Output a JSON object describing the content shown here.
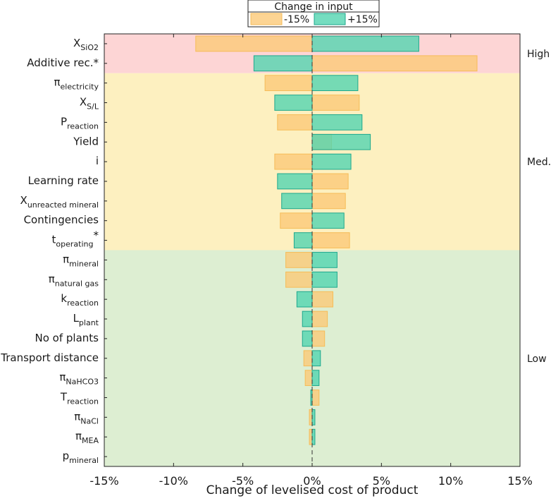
{
  "chart_data": {
    "type": "bar",
    "orientation": "horizontal",
    "title": "",
    "xlabel": "Change of levelised cost of product",
    "xlim": [
      -15,
      15
    ],
    "xticks": [
      "-15%",
      "-10%",
      "-5%",
      "0%",
      "5%",
      "10%",
      "15%"
    ],
    "xtick_values": [
      -15,
      -10,
      -5,
      0,
      5,
      10,
      15
    ],
    "legend": {
      "title": "Change in input",
      "entries": [
        "-15%",
        "+15%"
      ]
    },
    "categories": [
      {
        "main": "X",
        "sub": "SiO2",
        "sup": ""
      },
      {
        "main": "Additive rec.*",
        "sub": "",
        "sup": ""
      },
      {
        "main": "π",
        "sub": "electricity",
        "sup": ""
      },
      {
        "main": "X",
        "sub": "S/L",
        "sup": ""
      },
      {
        "main": "P",
        "sub": "reaction",
        "sup": ""
      },
      {
        "main": "Yield",
        "sub": "",
        "sup": ""
      },
      {
        "main": "i",
        "sub": "",
        "sup": ""
      },
      {
        "main": "Learning rate",
        "sub": "",
        "sup": ""
      },
      {
        "main": "X",
        "sub": "unreacted mineral",
        "sup": ""
      },
      {
        "main": "Contingencies",
        "sub": "",
        "sup": ""
      },
      {
        "main": "t",
        "sub": "operating",
        "sup": "*"
      },
      {
        "main": "π",
        "sub": "mineral",
        "sup": ""
      },
      {
        "main": "π",
        "sub": "natural gas",
        "sup": ""
      },
      {
        "main": "k",
        "sub": "reaction",
        "sup": ""
      },
      {
        "main": "L",
        "sub": "plant",
        "sup": ""
      },
      {
        "main": "No of plants",
        "sub": "",
        "sup": ""
      },
      {
        "main": "Transport distance",
        "sub": "",
        "sup": ""
      },
      {
        "main": "π",
        "sub": "NaHCO3",
        "sup": ""
      },
      {
        "main": "T",
        "sub": "reaction",
        "sup": ""
      },
      {
        "main": "π",
        "sub": "NaCl",
        "sup": ""
      },
      {
        "main": "π",
        "sub": "MEA",
        "sup": ""
      },
      {
        "main": "p",
        "sub": "mineral",
        "sup": ""
      }
    ],
    "series": [
      {
        "name": "-15%",
        "values": [
          -8.4,
          11.9,
          -3.4,
          3.4,
          -2.5,
          1.4,
          -2.7,
          2.6,
          2.4,
          -2.3,
          2.7,
          -1.9,
          -1.9,
          1.5,
          1.1,
          0.9,
          -0.6,
          -0.5,
          0.5,
          -0.2,
          -0.2,
          0.0
        ]
      },
      {
        "name": "+15%",
        "values": [
          7.7,
          -4.2,
          3.3,
          -2.7,
          3.6,
          4.2,
          2.8,
          -2.5,
          -2.2,
          2.3,
          -1.3,
          1.8,
          1.8,
          -1.1,
          -0.7,
          -0.7,
          0.6,
          0.5,
          -0.1,
          0.2,
          0.2,
          0.0
        ]
      }
    ],
    "bands": [
      {
        "label": "High",
        "from_index": 0,
        "to_index": 1,
        "fill": "#fdd5d5",
        "text_color": "#e3211d"
      },
      {
        "label": "Med.",
        "from_index": 2,
        "to_index": 10,
        "fill": "#fdf0c0",
        "text_color": "#f0c020"
      },
      {
        "label": "Low",
        "from_index": 11,
        "to_index": 21,
        "fill": "#ddeed2",
        "text_color": "#5cb82e"
      }
    ],
    "colors": {
      "neg_fill": "#fbc978",
      "neg_stroke": "#f6bc58",
      "pos_fill": "#53d4b0",
      "pos_stroke": "#1fa88d"
    }
  }
}
